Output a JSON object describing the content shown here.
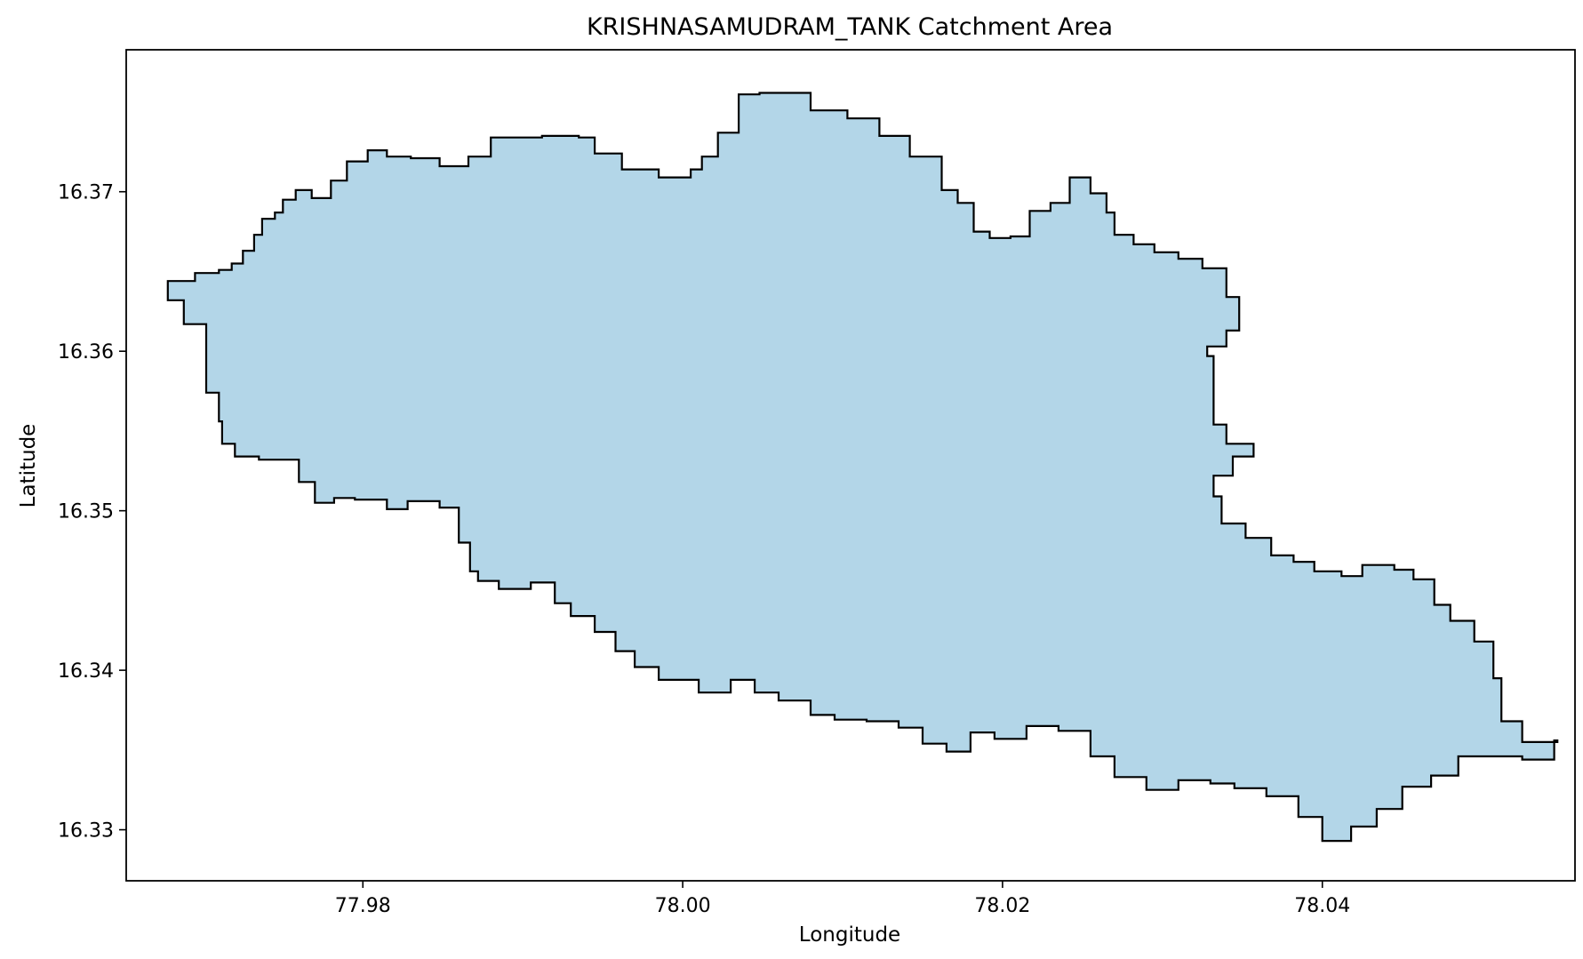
{
  "title": "KRISHNASAMUDRAM_TANK Catchment Area",
  "xlabel": "Longitude",
  "ylabel": "Latitude",
  "colors": {
    "fill": "#b3d6e8",
    "edge": "#000000",
    "axes": "#000000",
    "background": "#ffffff"
  },
  "chart_data": {
    "type": "polygon",
    "xlim": [
      77.9652,
      78.0558
    ],
    "ylim": [
      16.3268,
      16.3789
    ],
    "xticks": [
      77.98,
      78.0,
      78.02,
      78.04
    ],
    "xtick_labels": [
      "77.98",
      "78.00",
      "78.02",
      "78.04"
    ],
    "yticks": [
      16.33,
      16.34,
      16.35,
      16.36,
      16.37
    ],
    "ytick_labels": [
      "16.33",
      "16.34",
      "16.35",
      "16.36",
      "16.37"
    ],
    "grid": false,
    "boundary": [
      [
        77.9695,
        16.3649
      ],
      [
        77.971,
        16.3651
      ],
      [
        77.9718,
        16.3655
      ],
      [
        77.9725,
        16.3663
      ],
      [
        77.9732,
        16.3673
      ],
      [
        77.9737,
        16.3683
      ],
      [
        77.9745,
        16.3687
      ],
      [
        77.975,
        16.3695
      ],
      [
        77.9758,
        16.3701
      ],
      [
        77.9768,
        16.3696
      ],
      [
        77.978,
        16.3707
      ],
      [
        77.979,
        16.3719
      ],
      [
        77.9803,
        16.3726
      ],
      [
        77.9815,
        16.3722
      ],
      [
        77.983,
        16.3721
      ],
      [
        77.9848,
        16.3716
      ],
      [
        77.9866,
        16.3722
      ],
      [
        77.988,
        16.3734
      ],
      [
        77.9912,
        16.3735
      ],
      [
        77.9935,
        16.3734
      ],
      [
        77.9945,
        16.3724
      ],
      [
        77.9962,
        16.3714
      ],
      [
        77.9985,
        16.3709
      ],
      [
        78.0005,
        16.3714
      ],
      [
        78.0012,
        16.3722
      ],
      [
        78.0022,
        16.3737
      ],
      [
        78.0035,
        16.3761
      ],
      [
        78.0048,
        16.3762
      ],
      [
        78.0068,
        16.3762
      ],
      [
        78.008,
        16.3751
      ],
      [
        78.0103,
        16.3746
      ],
      [
        78.0123,
        16.3735
      ],
      [
        78.0142,
        16.3722
      ],
      [
        78.0162,
        16.3701
      ],
      [
        78.0172,
        16.3693
      ],
      [
        78.0182,
        16.3675
      ],
      [
        78.0192,
        16.3671
      ],
      [
        78.0205,
        16.3672
      ],
      [
        78.0217,
        16.3688
      ],
      [
        78.023,
        16.3693
      ],
      [
        78.0242,
        16.3709
      ],
      [
        78.0255,
        16.3699
      ],
      [
        78.0265,
        16.3687
      ],
      [
        78.027,
        16.3673
      ],
      [
        78.0282,
        16.3667
      ],
      [
        78.0295,
        16.3662
      ],
      [
        78.031,
        16.3658
      ],
      [
        78.0325,
        16.3652
      ],
      [
        78.034,
        16.3634
      ],
      [
        78.0348,
        16.3613
      ],
      [
        78.034,
        16.3603
      ],
      [
        78.0328,
        16.3597
      ],
      [
        78.0332,
        16.3578
      ],
      [
        78.0332,
        16.3554
      ],
      [
        78.034,
        16.3542
      ],
      [
        78.0357,
        16.3534
      ],
      [
        78.0344,
        16.3522
      ],
      [
        78.0332,
        16.3509
      ],
      [
        78.0337,
        16.3492
      ],
      [
        78.0352,
        16.3483
      ],
      [
        78.0368,
        16.3472
      ],
      [
        78.0382,
        16.3468
      ],
      [
        78.0395,
        16.3462
      ],
      [
        78.0412,
        16.3459
      ],
      [
        78.0425,
        16.3466
      ],
      [
        78.0445,
        16.3463
      ],
      [
        78.0457,
        16.3457
      ],
      [
        78.047,
        16.3441
      ],
      [
        78.048,
        16.3431
      ],
      [
        78.0495,
        16.3418
      ],
      [
        78.0507,
        16.3395
      ],
      [
        78.0512,
        16.3368
      ],
      [
        78.0525,
        16.3355
      ],
      [
        78.0547,
        16.3356
      ],
      [
        78.0545,
        16.3344
      ],
      [
        78.0525,
        16.3346
      ],
      [
        78.05,
        16.3346
      ],
      [
        78.0485,
        16.3334
      ],
      [
        78.0468,
        16.3327
      ],
      [
        78.045,
        16.3313
      ],
      [
        78.0434,
        16.3302
      ],
      [
        78.0418,
        16.3293
      ],
      [
        78.04,
        16.3308
      ],
      [
        78.0385,
        16.3321
      ],
      [
        78.0365,
        16.3326
      ],
      [
        78.0345,
        16.3329
      ],
      [
        78.033,
        16.3331
      ],
      [
        78.031,
        16.3325
      ],
      [
        78.029,
        16.3333
      ],
      [
        78.027,
        16.3346
      ],
      [
        78.0255,
        16.3362
      ],
      [
        78.0235,
        16.3365
      ],
      [
        78.0215,
        16.3357
      ],
      [
        78.0195,
        16.3361
      ],
      [
        78.018,
        16.3349
      ],
      [
        78.0165,
        16.3354
      ],
      [
        78.015,
        16.3364
      ],
      [
        78.0135,
        16.3368
      ],
      [
        78.0115,
        16.3369
      ],
      [
        78.0095,
        16.3372
      ],
      [
        78.008,
        16.3381
      ],
      [
        78.006,
        16.3386
      ],
      [
        78.0045,
        16.3394
      ],
      [
        78.003,
        16.3386
      ],
      [
        78.001,
        16.3394
      ],
      [
        77.9985,
        16.3402
      ],
      [
        77.997,
        16.3412
      ],
      [
        77.9958,
        16.3424
      ],
      [
        77.9945,
        16.3434
      ],
      [
        77.993,
        16.3442
      ],
      [
        77.992,
        16.3455
      ],
      [
        77.9905,
        16.3451
      ],
      [
        77.9885,
        16.3456
      ],
      [
        77.9872,
        16.3462
      ],
      [
        77.9867,
        16.348
      ],
      [
        77.986,
        16.3502
      ],
      [
        77.9848,
        16.3506
      ],
      [
        77.9828,
        16.3501
      ],
      [
        77.9815,
        16.3507
      ],
      [
        77.9795,
        16.3508
      ],
      [
        77.9782,
        16.3505
      ],
      [
        77.977,
        16.3518
      ],
      [
        77.976,
        16.3532
      ],
      [
        77.9735,
        16.3534
      ],
      [
        77.972,
        16.3542
      ],
      [
        77.9712,
        16.3556
      ],
      [
        77.971,
        16.3574
      ],
      [
        77.9702,
        16.3595
      ],
      [
        77.9702,
        16.3617
      ],
      [
        77.9688,
        16.3632
      ],
      [
        77.9678,
        16.3644
      ]
    ]
  }
}
